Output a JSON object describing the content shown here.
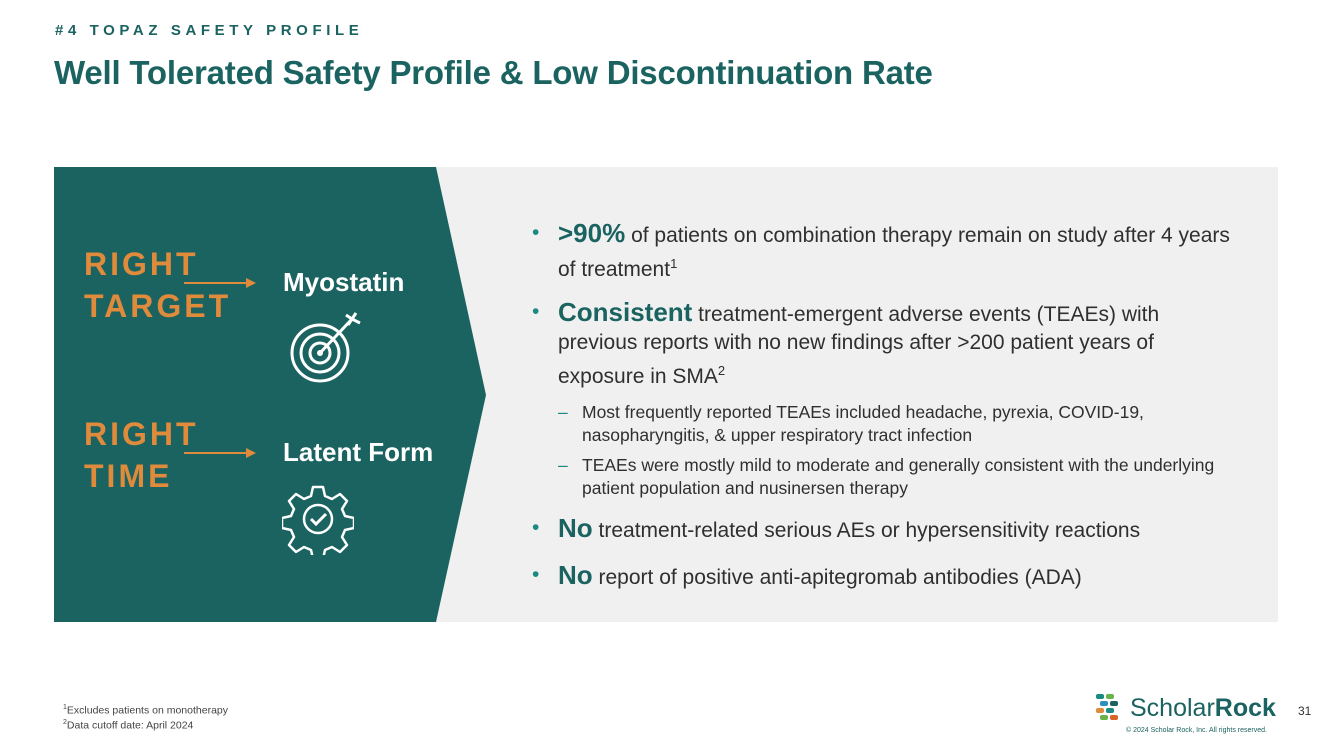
{
  "header": {
    "eyebrow": "#4 TOPAZ SAFETY PROFILE",
    "title": "Well Tolerated Safety Profile & Low Discontinuation Rate"
  },
  "left_panel": {
    "row1": {
      "word1": "RIGHT",
      "word2": "TARGET",
      "label": "Myostatin",
      "icon": "target-icon"
    },
    "row2": {
      "word1": "RIGHT",
      "word2": "TIME",
      "label": "Latent Form",
      "icon": "gear-check-icon"
    }
  },
  "bullets": [
    {
      "emphasis": ">90%",
      "text": " of patients on combination therapy remain on study after 4 years of treatment",
      "sup": "1"
    },
    {
      "emphasis": "Consistent",
      "text": " treatment-emergent adverse events (TEAEs) with previous reports with no new findings after >200 patient years of exposure in SMA",
      "sup": "2",
      "subs": [
        "Most frequently reported TEAEs included headache, pyrexia, COVID-19, nasopharyngitis, & upper respiratory tract infection",
        "TEAEs were mostly mild to moderate and generally consistent with the underlying patient population and nusinersen therapy"
      ]
    },
    {
      "emphasis": "No",
      "text": " treatment-related serious AEs or hypersensitivity reactions"
    },
    {
      "emphasis": "No",
      "text": " report of positive anti-apitegromab antibodies (ADA)"
    }
  ],
  "footnotes": {
    "f1": "Excludes patients on monotherapy",
    "f1_mark": "1",
    "f2": "Data cutoff date: April 2024",
    "f2_mark": "2"
  },
  "brand": {
    "name_light": "Scholar",
    "name_bold": "Rock",
    "copyright": "© 2024 Scholar Rock, Inc. All rights reserved."
  },
  "page_number": "31",
  "colors": {
    "teal": "#1b6360",
    "orange": "#e08a3c",
    "panel_bg": "#f0f0f0"
  }
}
